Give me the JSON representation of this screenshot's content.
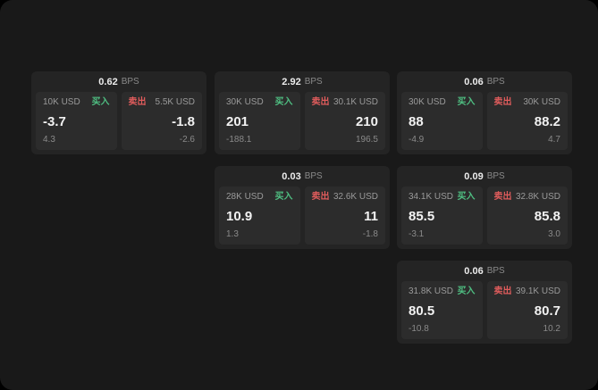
{
  "page": {
    "background": "#191919",
    "card_background": "#242424",
    "panel_background": "#2c2c2c",
    "buy_color": "#4fbf82",
    "sell_color": "#e05c5c"
  },
  "cards": [
    {
      "bps_value": "0.62",
      "bps_label": "BPS",
      "buy": {
        "amount": "10K USD",
        "tag": "买入",
        "price": "-3.7",
        "delta": "4.3"
      },
      "sell": {
        "amount": "5.5K USD",
        "tag": "卖出",
        "price": "-1.8",
        "delta": "-2.6"
      }
    },
    {
      "bps_value": "2.92",
      "bps_label": "BPS",
      "buy": {
        "amount": "30K USD",
        "tag": "买入",
        "price": "201",
        "delta": "-188.1"
      },
      "sell": {
        "amount": "30.1K USD",
        "tag": "卖出",
        "price": "210",
        "delta": "196.5"
      }
    },
    {
      "bps_value": "0.06",
      "bps_label": "BPS",
      "buy": {
        "amount": "30K USD",
        "tag": "买入",
        "price": "88",
        "delta": "-4.9"
      },
      "sell": {
        "amount": "30K USD",
        "tag": "卖出",
        "price": "88.2",
        "delta": "4.7"
      }
    },
    {
      "bps_value": "0.03",
      "bps_label": "BPS",
      "buy": {
        "amount": "28K USD",
        "tag": "买入",
        "price": "10.9",
        "delta": "1.3"
      },
      "sell": {
        "amount": "32.6K USD",
        "tag": "卖出",
        "price": "11",
        "delta": "-1.8"
      }
    },
    {
      "bps_value": "0.09",
      "bps_label": "BPS",
      "buy": {
        "amount": "34.1K USD",
        "tag": "买入",
        "price": "85.5",
        "delta": "-3.1"
      },
      "sell": {
        "amount": "32.8K USD",
        "tag": "卖出",
        "price": "85.8",
        "delta": "3.0"
      }
    },
    {
      "bps_value": "0.06",
      "bps_label": "BPS",
      "buy": {
        "amount": "31.8K USD",
        "tag": "买入",
        "price": "80.5",
        "delta": "-10.8"
      },
      "sell": {
        "amount": "39.1K USD",
        "tag": "卖出",
        "price": "80.7",
        "delta": "10.2"
      }
    }
  ]
}
